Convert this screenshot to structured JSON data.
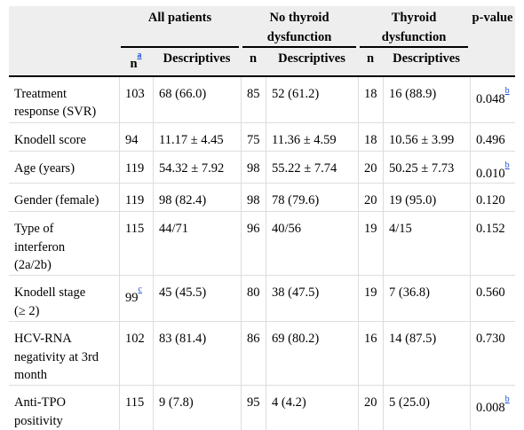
{
  "header": {
    "groups": [
      "All patients",
      "No thyroid dysfunction",
      "Thyroid dysfunction"
    ],
    "group_lines": [
      [
        "All patients"
      ],
      [
        "No thyroid",
        "dysfunction"
      ],
      [
        "Thyroid",
        "dysfunction"
      ]
    ],
    "pvalue": "p-value",
    "n": "n",
    "n_note": "a",
    "descriptives": "Descriptives"
  },
  "rows": [
    {
      "label_lines": [
        "Treatment",
        "response (SVR)"
      ],
      "all_n": "103",
      "all_n_note": "",
      "all_desc": "68 (66.0)",
      "no_n": "85",
      "no_desc": "52 (61.2)",
      "thy_n": "18",
      "thy_desc": "16 (88.9)",
      "p": "0.048",
      "p_note": "b"
    },
    {
      "label_lines": [
        "Knodell score"
      ],
      "all_n": "94",
      "all_n_note": "",
      "all_desc": "11.17 ± 4.45",
      "no_n": "75",
      "no_desc": "11.36 ± 4.59",
      "thy_n": "18",
      "thy_desc": "10.56 ± 3.99",
      "p": "0.496",
      "p_note": ""
    },
    {
      "label_lines": [
        "Age (years)"
      ],
      "all_n": "119",
      "all_n_note": "",
      "all_desc": "54.32 ± 7.92",
      "no_n": "98",
      "no_desc": "55.22 ± 7.74",
      "thy_n": "20",
      "thy_desc": "50.25 ± 7.73",
      "p": "0.010",
      "p_note": "b"
    },
    {
      "label_lines": [
        "Gender (female)"
      ],
      "all_n": "119",
      "all_n_note": "",
      "all_desc": "98 (82.4)",
      "no_n": "98",
      "no_desc": "78 (79.6)",
      "thy_n": "20",
      "thy_desc": "19 (95.0)",
      "p": "0.120",
      "p_note": ""
    },
    {
      "label_lines": [
        "Type of",
        "interferon",
        "(2a/2b)"
      ],
      "all_n": "115",
      "all_n_note": "",
      "all_desc": "44/71",
      "no_n": "96",
      "no_desc": "40/56",
      "thy_n": "19",
      "thy_desc": "4/15",
      "p": "0.152",
      "p_note": ""
    },
    {
      "label_lines": [
        "Knodell stage",
        "(≥ 2)"
      ],
      "all_n": "99",
      "all_n_note": "c",
      "all_desc": "45 (45.5)",
      "no_n": "80",
      "no_desc": "38 (47.5)",
      "thy_n": "19",
      "thy_desc": "7 (36.8)",
      "p": "0.560",
      "p_note": ""
    },
    {
      "label_lines": [
        "HCV-RNA",
        "negativity at 3rd",
        "month"
      ],
      "all_n": "102",
      "all_n_note": "",
      "all_desc": "83 (81.4)",
      "no_n": "86",
      "no_desc": "69 (80.2)",
      "thy_n": "16",
      "thy_desc": "14 (87.5)",
      "p": "0.730",
      "p_note": ""
    },
    {
      "label_lines": [
        "Anti-TPO",
        "positivity"
      ],
      "all_n": "115",
      "all_n_note": "",
      "all_desc": "9 (7.8)",
      "no_n": "95",
      "no_desc": "4 (4.2)",
      "thy_n": "20",
      "thy_desc": "5 (25.0)",
      "p": "0.008",
      "p_note": "b"
    }
  ]
}
